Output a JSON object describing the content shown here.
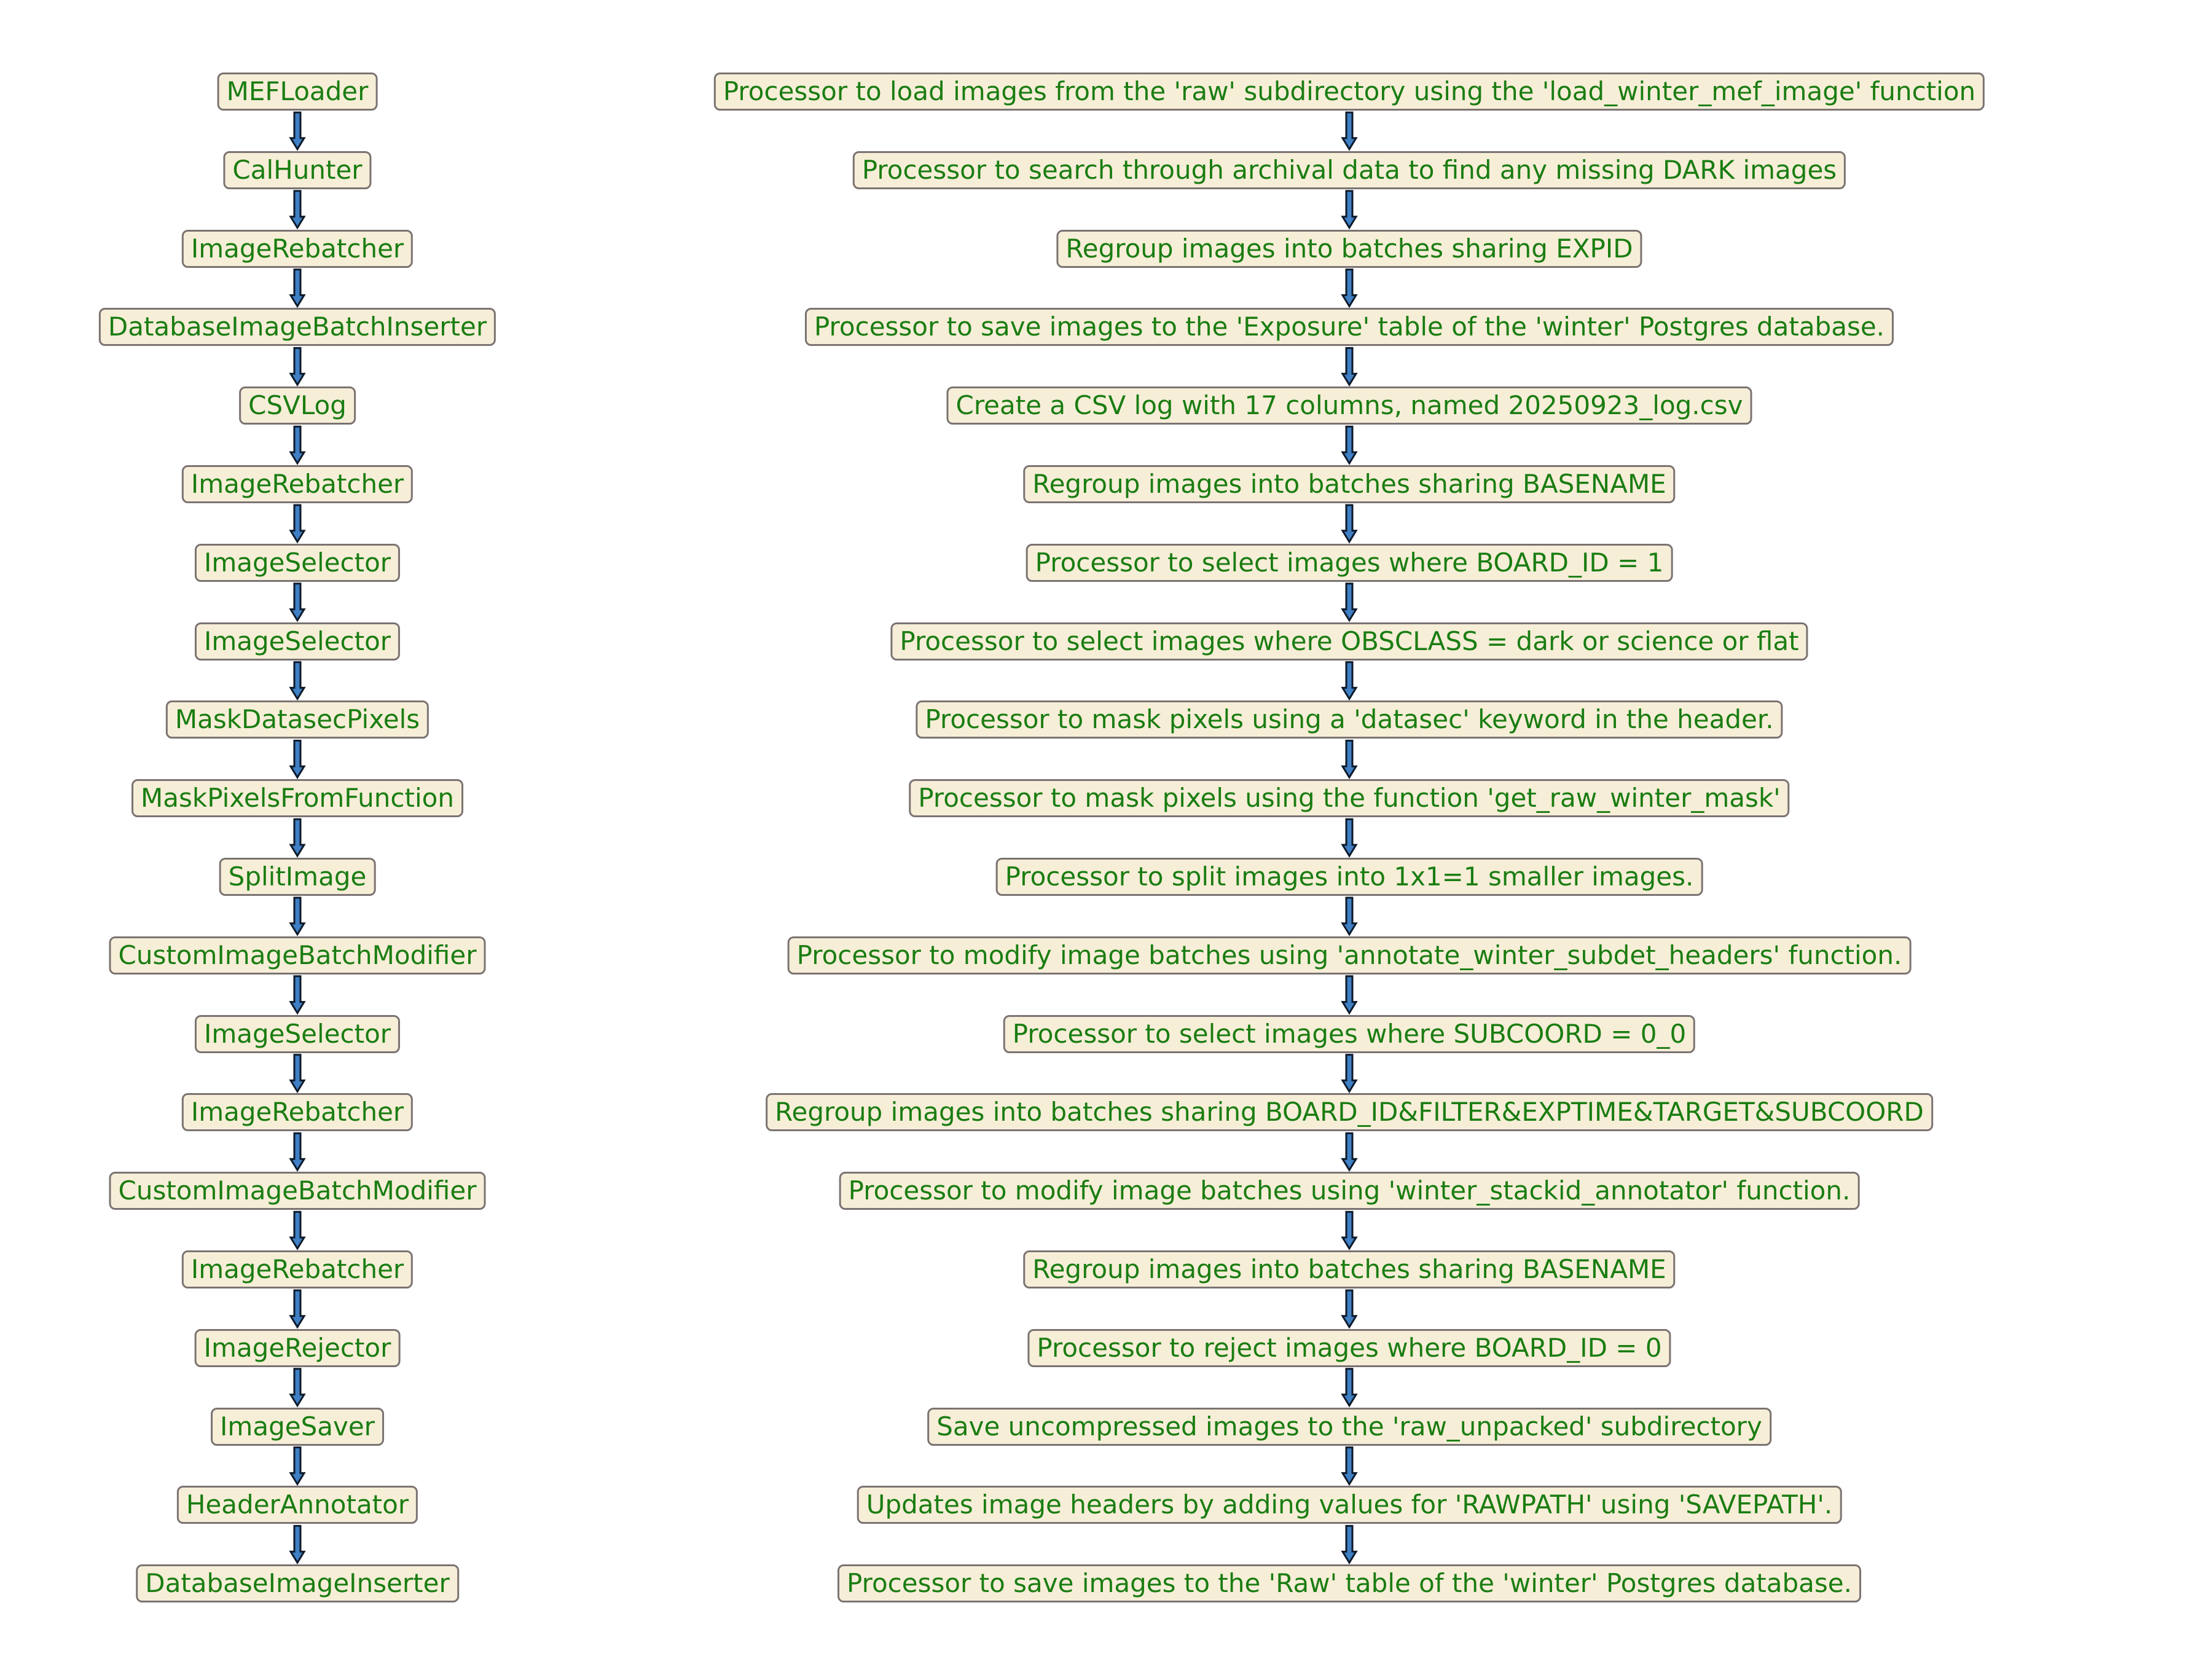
{
  "steps": [
    {
      "name": "MEFLoader",
      "description": "Processor to load images from the 'raw' subdirectory using the 'load_winter_mef_image' function"
    },
    {
      "name": "CalHunter",
      "description": "Processor to search through archival data to find any missing DARK images"
    },
    {
      "name": "ImageRebatcher",
      "description": "Regroup images into batches sharing EXPID"
    },
    {
      "name": "DatabaseImageBatchInserter",
      "description": "Processor to save images to the 'Exposure' table of the 'winter' Postgres database."
    },
    {
      "name": "CSVLog",
      "description": "Create a CSV log with 17 columns, named 20250923_log.csv"
    },
    {
      "name": "ImageRebatcher",
      "description": "Regroup images into batches sharing BASENAME"
    },
    {
      "name": "ImageSelector",
      "description": "Processor to select images where BOARD_ID = 1"
    },
    {
      "name": "ImageSelector",
      "description": "Processor to select images where OBSCLASS = dark or science or flat"
    },
    {
      "name": "MaskDatasecPixels",
      "description": "Processor to mask pixels using a 'datasec' keyword in the header."
    },
    {
      "name": "MaskPixelsFromFunction",
      "description": "Processor to mask pixels using the function 'get_raw_winter_mask'"
    },
    {
      "name": "SplitImage",
      "description": "Processor to split images into 1x1=1 smaller images."
    },
    {
      "name": "CustomImageBatchModifier",
      "description": "Processor to modify image batches using 'annotate_winter_subdet_headers' function."
    },
    {
      "name": "ImageSelector",
      "description": "Processor to select images where SUBCOORD = 0_0"
    },
    {
      "name": "ImageRebatcher",
      "description": "Regroup images into batches sharing BOARD_ID&FILTER&EXPTIME&TARGET&SUBCOORD"
    },
    {
      "name": "CustomImageBatchModifier",
      "description": "Processor to modify image batches using 'winter_stackid_annotator' function."
    },
    {
      "name": "ImageRebatcher",
      "description": "Regroup images into batches sharing BASENAME"
    },
    {
      "name": "ImageRejector",
      "description": "Processor to reject images where BOARD_ID = 0"
    },
    {
      "name": "ImageSaver",
      "description": "Save uncompressed images to the 'raw_unpacked' subdirectory"
    },
    {
      "name": "HeaderAnnotator",
      "description": "Updates image headers by adding values for 'RAWPATH' using 'SAVEPATH'."
    },
    {
      "name": "DatabaseImageInserter",
      "description": "Processor to save images to the 'Raw' table of the 'winter' Postgres database."
    }
  ]
}
